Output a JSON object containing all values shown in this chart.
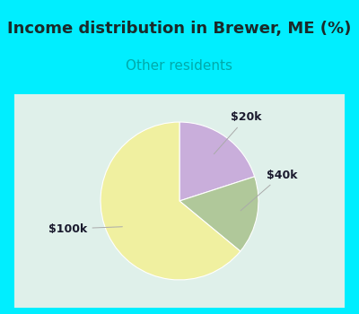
{
  "title": "Income distribution in Brewer, ME (%)",
  "subtitle": "Other residents",
  "title_color": "#1a2a2a",
  "subtitle_color": "#00aaaa",
  "background_outer": "#00eeff",
  "background_inner": "#dff0ea",
  "slices": [
    {
      "label": "$20k",
      "value": 20,
      "color": "#c9aedb"
    },
    {
      "label": "$40k",
      "value": 16,
      "color": "#b0c89a"
    },
    {
      "label": "$100k",
      "value": 64,
      "color": "#f0f0a0"
    }
  ],
  "label_color": "#1a1a2e",
  "label_fontsize": 9,
  "title_fontsize": 13,
  "subtitle_fontsize": 11,
  "startangle": 90
}
